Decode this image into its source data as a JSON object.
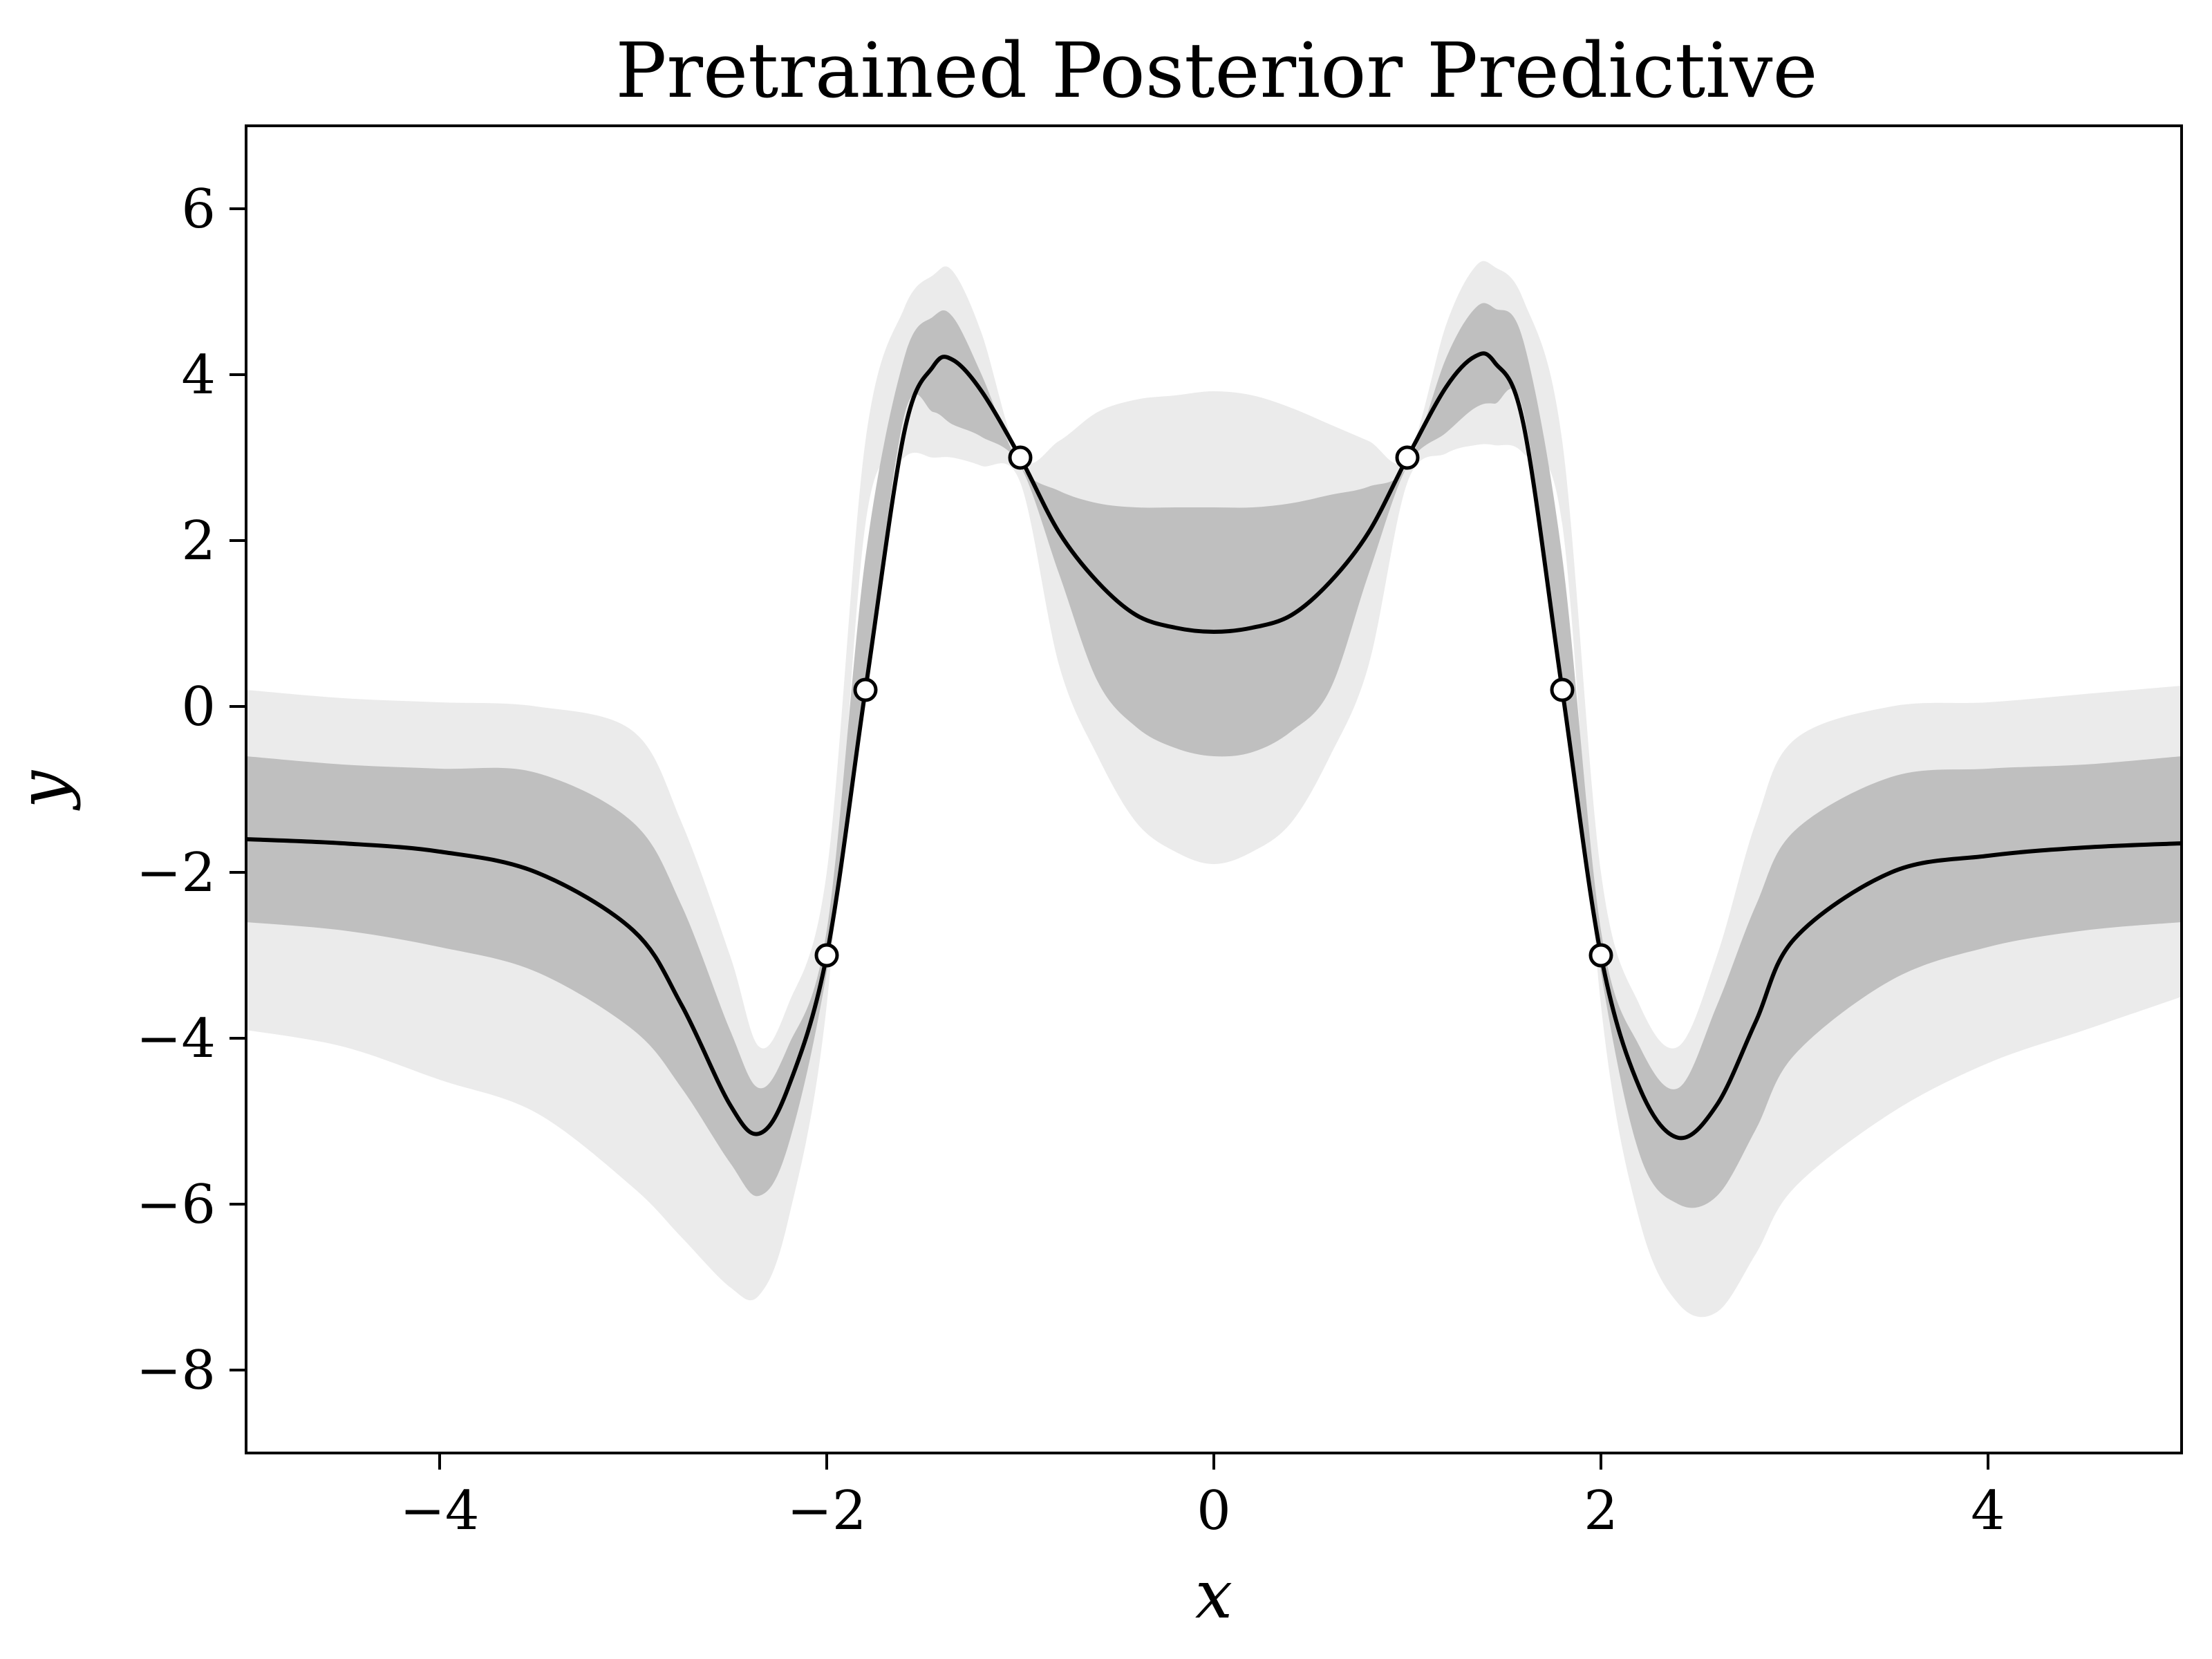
{
  "chart_data": {
    "type": "line",
    "title": "Pretrained Posterior Predictive",
    "xlabel": "x",
    "ylabel": "y",
    "xlim": [
      -5,
      5
    ],
    "ylim": [
      -9,
      7
    ],
    "xticks": [
      -4,
      -2,
      0,
      2,
      4
    ],
    "yticks": [
      -8,
      -6,
      -4,
      -2,
      0,
      2,
      4,
      6
    ],
    "xtick_labels": [
      "−4",
      "−2",
      "0",
      "2",
      "4"
    ],
    "ytick_labels": [
      "−8",
      "−6",
      "−4",
      "−2",
      "0",
      "2",
      "4",
      "6"
    ],
    "grid": false,
    "colors": {
      "mean": "#000000",
      "inner_band": "#bfbfbf",
      "outer_band": "#ebebeb",
      "points_fill": "#ffffff",
      "points_edge": "#000000"
    },
    "x": [
      -5.0,
      -4.5,
      -4.0,
      -3.5,
      -3.0,
      -2.75,
      -2.5,
      -2.35,
      -2.2,
      -2.0,
      -1.8,
      -1.6,
      -1.45,
      -1.35,
      -1.2,
      -1.0,
      -0.8,
      -0.6,
      -0.4,
      -0.2,
      0.0,
      0.2,
      0.4,
      0.6,
      0.8,
      1.0,
      1.2,
      1.35,
      1.45,
      1.6,
      1.8,
      2.0,
      2.2,
      2.4,
      2.6,
      2.8,
      3.0,
      3.5,
      4.0,
      4.5,
      5.0
    ],
    "series": [
      {
        "id": "outer_band",
        "lower": [
          -3.9,
          -4.1,
          -4.5,
          -4.9,
          -5.8,
          -6.4,
          -7.0,
          -7.1,
          -6.2,
          -3.6,
          2.2,
          3.0,
          3.0,
          3.0,
          2.9,
          2.7,
          0.5,
          -0.6,
          -1.4,
          -1.75,
          -1.9,
          -1.75,
          -1.4,
          -0.6,
          0.5,
          2.7,
          3.05,
          3.15,
          3.15,
          3.05,
          2.2,
          -3.6,
          -6.2,
          -7.2,
          -7.3,
          -6.6,
          -5.8,
          -4.9,
          -4.3,
          -3.9,
          -3.5
        ],
        "upper": [
          0.2,
          0.1,
          0.05,
          0.0,
          -0.3,
          -1.4,
          -3.0,
          -4.1,
          -3.6,
          -2.0,
          3.2,
          4.8,
          5.2,
          5.25,
          4.5,
          3.0,
          3.2,
          3.55,
          3.7,
          3.75,
          3.8,
          3.75,
          3.6,
          3.4,
          3.2,
          3.0,
          4.6,
          5.3,
          5.3,
          4.9,
          3.2,
          -2.0,
          -3.6,
          -4.1,
          -3.0,
          -1.4,
          -0.4,
          0.0,
          0.05,
          0.15,
          0.25
        ]
      },
      {
        "id": "inner_band",
        "lower": [
          -2.6,
          -2.7,
          -2.9,
          -3.2,
          -3.9,
          -4.6,
          -5.5,
          -5.9,
          -5.3,
          -3.2,
          0.2,
          3.5,
          3.55,
          3.4,
          3.25,
          2.9,
          1.6,
          0.3,
          -0.25,
          -0.5,
          -0.6,
          -0.55,
          -0.3,
          0.2,
          1.6,
          2.9,
          3.3,
          3.6,
          3.65,
          3.55,
          0.2,
          -3.2,
          -5.4,
          -6.0,
          -5.9,
          -5.1,
          -4.2,
          -3.3,
          -2.9,
          -2.7,
          -2.6
        ],
        "upper": [
          -0.6,
          -0.7,
          -0.75,
          -0.8,
          -1.4,
          -2.4,
          -3.9,
          -4.6,
          -4.1,
          -2.7,
          1.8,
          4.2,
          4.7,
          4.7,
          4.0,
          2.9,
          2.6,
          2.45,
          2.4,
          2.4,
          2.4,
          2.4,
          2.45,
          2.55,
          2.65,
          2.9,
          4.2,
          4.8,
          4.8,
          4.4,
          1.8,
          -2.7,
          -4.1,
          -4.6,
          -3.6,
          -2.4,
          -1.5,
          -0.85,
          -0.75,
          -0.7,
          -0.6
        ]
      },
      {
        "id": "mean",
        "values": [
          -1.6,
          -1.65,
          -1.75,
          -2.0,
          -2.7,
          -3.6,
          -4.8,
          -5.15,
          -4.6,
          -3.0,
          0.2,
          3.3,
          4.1,
          4.18,
          3.8,
          3.0,
          2.1,
          1.5,
          1.1,
          0.95,
          0.9,
          0.95,
          1.1,
          1.5,
          2.1,
          3.0,
          3.85,
          4.22,
          4.15,
          3.4,
          0.2,
          -3.0,
          -4.6,
          -5.2,
          -4.8,
          -3.8,
          -2.8,
          -2.0,
          -1.8,
          -1.7,
          -1.65
        ]
      }
    ],
    "points": [
      {
        "x": -2.0,
        "y": -3.0
      },
      {
        "x": -1.8,
        "y": 0.2
      },
      {
        "x": -1.0,
        "y": 3.0
      },
      {
        "x": 1.0,
        "y": 3.0
      },
      {
        "x": 1.8,
        "y": 0.2
      },
      {
        "x": 2.0,
        "y": -3.0
      }
    ]
  }
}
